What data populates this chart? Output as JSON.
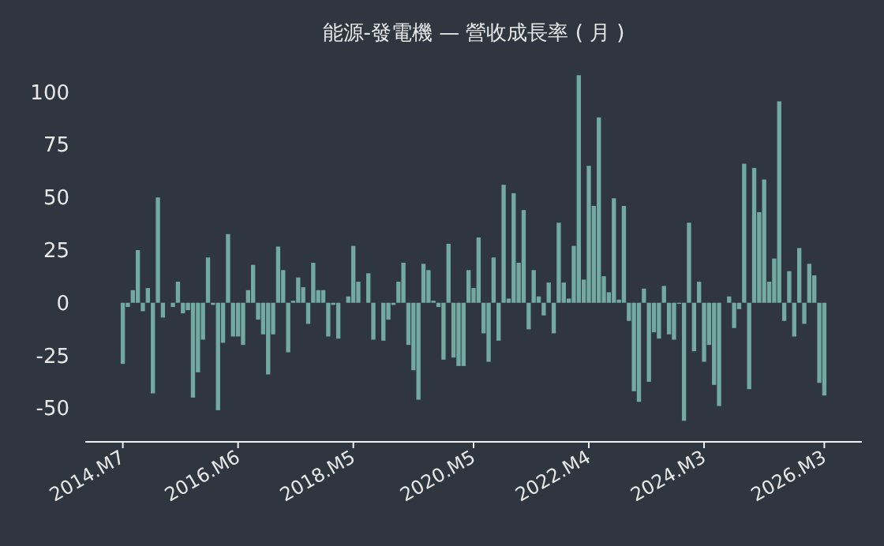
{
  "chart_data": {
    "type": "bar",
    "title": "能源-發電機 — 營收成長率 ( 月 )",
    "categories": [
      "2014.M7",
      null,
      null,
      null,
      null,
      null,
      null,
      null,
      null,
      null,
      null,
      null,
      null,
      null,
      null,
      null,
      null,
      null,
      null,
      null,
      null,
      null,
      null,
      "2016.M6",
      null,
      null,
      null,
      null,
      null,
      null,
      null,
      null,
      null,
      null,
      null,
      null,
      null,
      null,
      null,
      null,
      null,
      null,
      null,
      null,
      null,
      null,
      "2018.M5",
      null,
      null,
      null,
      null,
      null,
      null,
      null,
      null,
      null,
      null,
      null,
      null,
      null,
      null,
      null,
      null,
      null,
      null,
      null,
      null,
      null,
      null,
      null,
      "2020.M5",
      null,
      null,
      null,
      null,
      null,
      null,
      null,
      null,
      null,
      null,
      null,
      null,
      null,
      null,
      null,
      null,
      null,
      null,
      null,
      null,
      null,
      null,
      "2022.M4",
      null,
      null,
      null,
      null,
      null,
      null,
      null,
      null,
      null,
      null,
      null,
      null,
      null,
      null,
      null,
      null,
      null,
      null,
      null,
      null,
      null,
      null,
      "2024.M3",
      null,
      null,
      null,
      null,
      null,
      null,
      null,
      null,
      null,
      null,
      null,
      null,
      null,
      null,
      null,
      null,
      null,
      null,
      null,
      null,
      null,
      null,
      null,
      "2026.M3"
    ],
    "values": [
      -29,
      -2,
      6,
      25,
      -4,
      7,
      -43,
      50,
      -7,
      0,
      -2,
      10,
      -5,
      -3.5,
      -45,
      -33,
      -17.5,
      21.5,
      -1,
      -51,
      -19,
      32.6,
      -16,
      -16,
      -20,
      6,
      18,
      -8,
      -15,
      -34,
      -15,
      26.7,
      15.5,
      -23.5,
      1,
      12,
      7.4,
      -10,
      19,
      6,
      6,
      -16,
      -1,
      -17,
      0,
      3,
      27,
      10,
      0,
      14,
      -17.5,
      0,
      -18,
      -8,
      -1,
      10,
      19,
      -20,
      -32,
      -46,
      18.5,
      15.5,
      1,
      -2,
      -27,
      28,
      -26,
      -30,
      -30,
      15.5,
      7,
      31,
      -14.5,
      -28,
      21.5,
      -18,
      56,
      2,
      52,
      19,
      44,
      -12.6,
      15.5,
      3,
      -6,
      9.6,
      -14.5,
      38,
      9.6,
      2,
      27,
      108,
      11,
      65,
      46,
      88,
      12.6,
      5,
      49.6,
      1.5,
      46,
      -8.6,
      -42,
      -47,
      6.7,
      -37.5,
      -14,
      -17,
      8,
      -15,
      -17.5,
      -0.5,
      -56,
      38,
      -23,
      10,
      -28,
      -20,
      -39,
      -49,
      0,
      3,
      -12,
      -3,
      66,
      -41,
      64,
      43,
      58.5,
      10,
      21,
      95.6,
      -8.6,
      15,
      -16,
      26,
      -10,
      18.5,
      13,
      -38,
      -44
    ],
    "color": "#72aaa1",
    "ylim": [
      -66,
      110
    ],
    "yticks": [
      -50,
      -25,
      0,
      25,
      50,
      75,
      100
    ]
  }
}
